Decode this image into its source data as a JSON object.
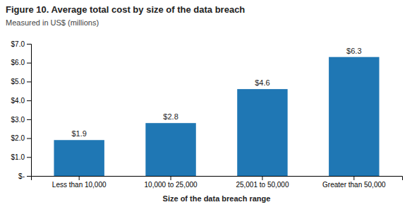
{
  "chart_data": {
    "type": "bar",
    "title": "Figure 10. Average total cost by size of the data breach",
    "subtitle": "Measured in US$ (millions)",
    "categories": [
      "Less than 10,000",
      "10,000 to 25,000",
      "25,001 to 50,000",
      "Greater than 50,000"
    ],
    "values": [
      1.9,
      2.8,
      4.6,
      6.3
    ],
    "value_labels": [
      "$1.9",
      "$2.8",
      "$4.6",
      "$6.3"
    ],
    "data_labels": true,
    "xlabel": "Size of the data breach range",
    "ylim": [
      0,
      7.0
    ],
    "yticks": [
      {
        "value": 0,
        "label": "$-"
      },
      {
        "value": 1.0,
        "label": "$1.0"
      },
      {
        "value": 2.0,
        "label": "$2.0"
      },
      {
        "value": 3.0,
        "label": "$3.0"
      },
      {
        "value": 4.0,
        "label": "$4.0"
      },
      {
        "value": 5.0,
        "label": "$5.0"
      },
      {
        "value": 6.0,
        "label": "$6.0"
      },
      {
        "value": 7.0,
        "label": "$7.0"
      }
    ],
    "grid": false
  }
}
